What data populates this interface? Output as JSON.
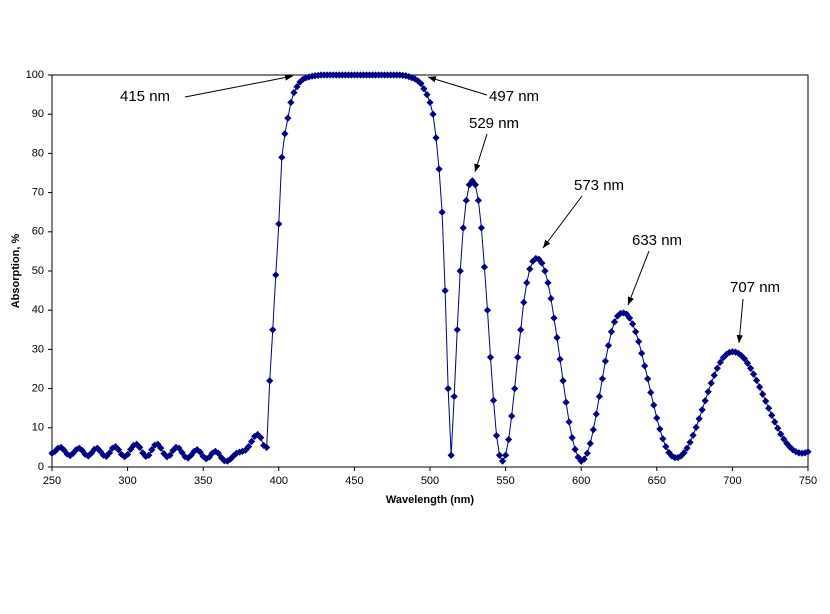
{
  "chart_data": {
    "type": "line",
    "xlabel": "Wavelength (nm)",
    "ylabel": "Absorption, %",
    "xlim": [
      250,
      750
    ],
    "ylim": [
      0,
      100
    ],
    "xticks": [
      250,
      300,
      350,
      400,
      450,
      500,
      550,
      600,
      650,
      700,
      750
    ],
    "yticks": [
      0,
      10,
      20,
      30,
      40,
      50,
      60,
      70,
      80,
      90,
      100
    ],
    "grid": false,
    "marker": "diamond",
    "annotations": [
      "415 nm",
      "497 nm",
      "529 nm",
      "573 nm",
      "633 nm",
      "707 nm"
    ],
    "x": [
      250,
      252,
      254,
      256,
      258,
      260,
      262,
      264,
      266,
      268,
      270,
      272,
      274,
      276,
      278,
      280,
      282,
      284,
      286,
      288,
      290,
      292,
      294,
      296,
      298,
      300,
      302,
      304,
      306,
      308,
      310,
      312,
      314,
      316,
      318,
      320,
      322,
      324,
      326,
      328,
      330,
      332,
      334,
      336,
      338,
      340,
      342,
      344,
      346,
      348,
      350,
      352,
      354,
      356,
      358,
      360,
      362,
      364,
      366,
      368,
      370,
      372,
      374,
      376,
      378,
      380,
      382,
      384,
      386,
      388,
      390,
      392,
      394,
      396,
      398,
      400,
      402,
      404,
      406,
      408,
      410,
      412,
      414,
      416,
      418,
      420,
      422,
      424,
      426,
      428,
      430,
      432,
      434,
      436,
      438,
      440,
      442,
      444,
      446,
      448,
      450,
      452,
      454,
      456,
      458,
      460,
      462,
      464,
      466,
      468,
      470,
      472,
      474,
      476,
      478,
      480,
      482,
      484,
      486,
      488,
      490,
      492,
      494,
      496,
      498,
      500,
      502,
      504,
      506,
      508,
      510,
      512,
      514,
      516,
      518,
      520,
      522,
      524,
      526,
      528,
      530,
      532,
      534,
      536,
      538,
      540,
      542,
      544,
      546,
      548,
      550,
      552,
      554,
      556,
      558,
      560,
      562,
      564,
      566,
      568,
      570,
      572,
      574,
      576,
      578,
      580,
      582,
      584,
      586,
      588,
      590,
      592,
      594,
      596,
      598,
      600,
      602,
      604,
      606,
      608,
      610,
      612,
      614,
      616,
      618,
      620,
      622,
      624,
      626,
      628,
      630,
      632,
      634,
      636,
      638,
      640,
      642,
      644,
      646,
      648,
      650,
      652,
      654,
      656,
      658,
      660,
      662,
      664,
      666,
      668,
      670,
      672,
      674,
      676,
      678,
      680,
      682,
      684,
      686,
      688,
      690,
      692,
      694,
      696,
      698,
      700,
      702,
      704,
      706,
      708,
      710,
      712,
      714,
      716,
      718,
      720,
      722,
      724,
      726,
      728,
      730,
      732,
      734,
      736,
      738,
      740,
      742,
      744,
      746,
      748,
      750
    ],
    "series": [
      {
        "color": "#000080",
        "values": [
          3.5,
          4,
          4.8,
          5,
          4.3,
          3.3,
          2.9,
          3.5,
          4.4,
          4.8,
          4.2,
          3.2,
          2.8,
          3.5,
          4.5,
          4.8,
          4,
          3,
          2.7,
          3.6,
          4.8,
          5.2,
          4.4,
          3.2,
          2.6,
          3.2,
          4.5,
          5.5,
          5.8,
          5,
          3.6,
          2.7,
          3,
          4.4,
          5.6,
          5.8,
          4.8,
          3.4,
          2.6,
          3,
          4.2,
          5,
          4.8,
          3.7,
          2.6,
          2.3,
          3,
          4,
          4.4,
          3.8,
          2.7,
          2.1,
          2.5,
          3.5,
          4,
          3.5,
          2.4,
          1.6,
          1.5,
          2,
          2.8,
          3.5,
          3.8,
          4,
          4.3,
          5.2,
          6.5,
          7.8,
          8.3,
          7.5,
          5.5,
          5,
          22,
          35,
          49,
          62,
          79,
          85,
          89,
          93,
          95.5,
          97,
          98.2,
          98.9,
          99.3,
          99.5,
          99.7,
          99.8,
          99.9,
          100,
          100,
          100,
          100,
          100,
          100,
          100,
          100,
          100,
          100,
          100,
          100,
          100,
          100,
          100,
          100,
          100,
          100,
          100,
          100,
          100,
          100,
          100,
          100,
          100,
          100,
          100,
          99.9,
          99.8,
          99.6,
          99.3,
          99,
          98.5,
          97.8,
          96.5,
          95,
          93,
          90,
          84,
          76,
          65,
          45,
          20,
          3,
          18,
          35,
          50,
          61,
          68,
          72,
          73,
          72,
          68,
          61,
          51,
          40,
          28,
          17,
          8,
          3,
          1.5,
          3,
          7,
          13,
          20,
          28,
          35,
          42,
          47,
          50.5,
          52.5,
          53.2,
          53,
          52,
          50,
          47,
          43,
          38,
          33,
          27.5,
          22,
          16.5,
          11.5,
          7.5,
          4.5,
          2.5,
          1.5,
          2,
          3.5,
          6,
          9.5,
          13.5,
          18,
          22.5,
          27,
          31,
          34.5,
          37,
          38.5,
          39.2,
          39.3,
          39,
          38,
          36.5,
          34.5,
          32,
          29,
          25.8,
          22.5,
          19,
          15.8,
          12.5,
          9.7,
          7.2,
          5.2,
          3.7,
          2.8,
          2.4,
          2.4,
          2.8,
          3.6,
          4.8,
          6.3,
          8.1,
          10.1,
          12.3,
          14.6,
          16.9,
          19.2,
          21.4,
          23.4,
          25.2,
          26.7,
          27.9,
          28.7,
          29.2,
          29.4,
          29.3,
          29,
          28.4,
          27.6,
          26.5,
          25.2,
          23.7,
          22.1,
          20.4,
          18.6,
          16.8,
          15,
          13.2,
          11.5,
          9.9,
          8.4,
          7.1,
          6,
          5.1,
          4.4,
          3.9,
          3.6,
          3.5,
          3.6,
          3.9
        ]
      }
    ]
  }
}
